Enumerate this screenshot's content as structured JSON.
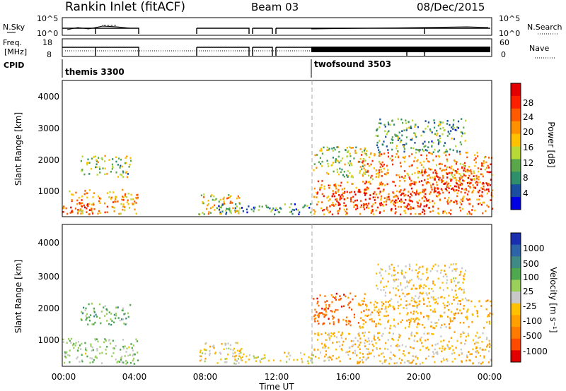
{
  "header": {
    "title": "Rankin Inlet (fitACF)",
    "beam": "Beam 03",
    "date": "08/Dec/2015"
  },
  "panels": {
    "nsky": {
      "label": "N.Sky",
      "left_ticks": [
        "10^5",
        "10^0"
      ],
      "right_ticks": [
        "10^5",
        "10^0"
      ],
      "right_label": "N.Search"
    },
    "freq": {
      "label_line1": "Freq.",
      "label_line2": "[MHz]",
      "left_ticks": [
        "18",
        "8"
      ],
      "right_ticks": [
        "60",
        "0"
      ],
      "right_label": "Nave"
    },
    "cpid": {
      "label": "CPID",
      "segments": [
        {
          "name": "themis 3300",
          "start_hour": 0
        },
        {
          "name": "twofsound 3503",
          "start_hour": 14
        }
      ]
    }
  },
  "axes": {
    "ylabel": "Slant Range [km]",
    "xlabel": "Time UT",
    "yticks": [
      "1000",
      "2000",
      "3000",
      "4000"
    ],
    "xticks": [
      "00:00",
      "04:00",
      "08:00",
      "12:00",
      "16:00",
      "20:00",
      "00:00"
    ]
  },
  "colorbars": {
    "power": {
      "label": "Power [dB]",
      "ticks": [
        "28",
        "24",
        "20",
        "16",
        "12",
        "8",
        "4"
      ],
      "colors": [
        "#e30000",
        "#ff2000",
        "#ff5a00",
        "#ff9000",
        "#ffc000",
        "#b8d836",
        "#5aa64a",
        "#2f8f6a",
        "#1a4fa0",
        "#0000e0"
      ]
    },
    "velocity": {
      "label": "Velocity [m s⁻¹]",
      "ticks": [
        "1000",
        "500",
        "100",
        "25",
        "-25",
        "-100",
        "-500",
        "-1000"
      ],
      "colors": [
        "#1a2fb0",
        "#2d64a8",
        "#3f8a85",
        "#4fa74f",
        "#9ad05a",
        "#c8c8c8",
        "#ffc000",
        "#ffa000",
        "#ff7a00",
        "#ff4a00",
        "#e00000"
      ]
    }
  },
  "chart_data": [
    {
      "type": "heatmap",
      "name": "power",
      "x_label": "Time UT",
      "y_label": "Slant Range [km]",
      "xlim_hours": [
        0,
        24
      ],
      "ylim_km": [
        200,
        4600
      ],
      "color_scale_db": [
        0,
        32
      ],
      "regions": [
        {
          "t": [
            0.0,
            4.2
          ],
          "r": [
            300,
            1100
          ],
          "v": 20
        },
        {
          "t": [
            0.4,
            1.8
          ],
          "r": [
            300,
            700
          ],
          "v": 27
        },
        {
          "t": [
            1.0,
            3.8
          ],
          "r": [
            1500,
            2200
          ],
          "v": 13
        },
        {
          "t": [
            7.6,
            10.0
          ],
          "r": [
            300,
            1000
          ],
          "v": 18
        },
        {
          "t": [
            8.5,
            14.0
          ],
          "r": [
            300,
            650
          ],
          "v": 8
        },
        {
          "t": [
            14.0,
            24.0
          ],
          "r": [
            300,
            1400
          ],
          "v": 23
        },
        {
          "t": [
            15.0,
            20.5
          ],
          "r": [
            450,
            1050
          ],
          "v": 28
        },
        {
          "t": [
            14.0,
            17.0
          ],
          "r": [
            1500,
            2500
          ],
          "v": 14
        },
        {
          "t": [
            16.5,
            24.0
          ],
          "r": [
            1400,
            2300
          ],
          "v": 21
        },
        {
          "t": [
            20.0,
            24.0
          ],
          "r": [
            1000,
            1800
          ],
          "v": 27
        },
        {
          "t": [
            17.5,
            22.5
          ],
          "r": [
            2300,
            3400
          ],
          "v": 10
        }
      ]
    },
    {
      "type": "heatmap",
      "name": "velocity",
      "x_label": "Time UT",
      "y_label": "Slant Range [km]",
      "xlim_hours": [
        0,
        24
      ],
      "ylim_km": [
        200,
        4600
      ],
      "color_scale_ms": [
        -1000,
        1000
      ],
      "regions": [
        {
          "t": [
            0.0,
            4.2
          ],
          "r": [
            300,
            1100
          ],
          "v": 150
        },
        {
          "t": [
            1.0,
            3.8
          ],
          "r": [
            1500,
            2200
          ],
          "v": 300
        },
        {
          "t": [
            7.6,
            10.0
          ],
          "r": [
            300,
            1000
          ],
          "v": -100
        },
        {
          "t": [
            9.5,
            14.0
          ],
          "r": [
            300,
            650
          ],
          "v": -80
        },
        {
          "t": [
            14.0,
            24.0
          ],
          "r": [
            300,
            1300
          ],
          "v": -200
        },
        {
          "t": [
            14.0,
            17.0
          ],
          "r": [
            1500,
            2500
          ],
          "v": -600
        },
        {
          "t": [
            16.5,
            24.0
          ],
          "r": [
            1400,
            2300
          ],
          "v": -300
        },
        {
          "t": [
            17.5,
            22.5
          ],
          "r": [
            2300,
            3400
          ],
          "v": -150
        }
      ]
    }
  ]
}
